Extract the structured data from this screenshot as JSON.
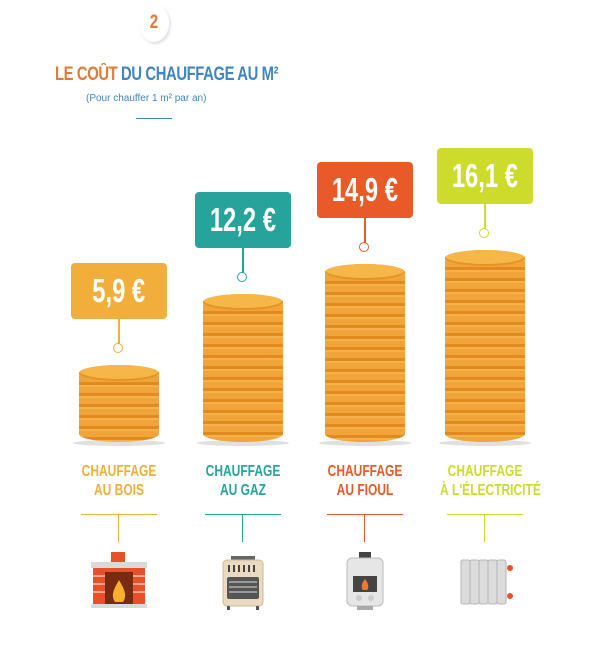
{
  "header": {
    "step": "2",
    "title_accent": "LE COÛT",
    "title_rest": " DU CHAUFFAGE AU M²",
    "subtitle": "(Pour chauffer 1 m² par an)"
  },
  "chart_data": {
    "type": "bar",
    "title": "LE COÛT DU CHAUFFAGE AU M²",
    "subtitle": "(Pour chauffer 1 m² par an)",
    "unit": "€",
    "categories": [
      "CHAUFFAGE AU BOIS",
      "CHAUFFAGE AU GAZ",
      "CHAUFFAGE AU FIOUL",
      "CHAUFFAGE À L'ÉLECTRICITÉ"
    ],
    "values": [
      5.9,
      12.2,
      14.9,
      16.1
    ],
    "value_labels": [
      "5,9 €",
      "12,2 €",
      "14,9 €",
      "16,1 €"
    ],
    "label_lines": [
      [
        "CHAUFFAGE",
        "AU BOIS"
      ],
      [
        "CHAUFFAGE",
        "AU GAZ"
      ],
      [
        "CHAUFFAGE",
        "AU FIOUL"
      ],
      [
        "CHAUFFAGE",
        "À L'ÉLECTRICITÉ"
      ]
    ],
    "colors": [
      "#f2ae3a",
      "#26a49c",
      "#e85a28",
      "#cddc2c"
    ],
    "icons": [
      "fireplace-icon",
      "gas-heater-icon",
      "oil-boiler-icon",
      "radiator-icon"
    ]
  }
}
